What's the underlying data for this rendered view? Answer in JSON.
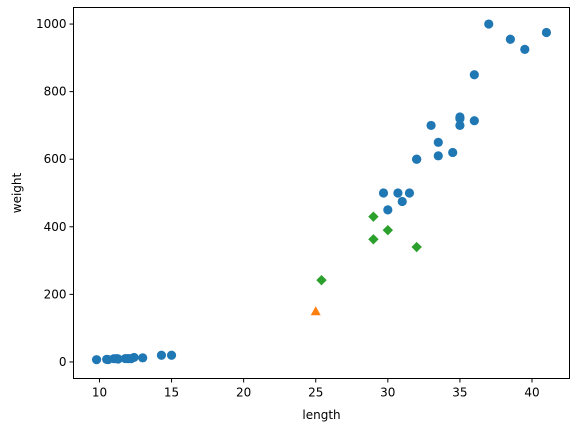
{
  "chart_data": {
    "type": "scatter",
    "title": "",
    "xlabel": "length",
    "ylabel": "weight",
    "xlim": [
      8.2,
      42.6
    ],
    "ylim": [
      -49,
      1049
    ],
    "xticks": [
      10,
      15,
      20,
      25,
      30,
      35,
      40
    ],
    "yticks": [
      0,
      200,
      400,
      600,
      800,
      1000
    ],
    "xtick_labels": [
      "10",
      "15",
      "20",
      "25",
      "30",
      "35",
      "40"
    ],
    "ytick_labels": [
      "0",
      "200",
      "400",
      "600",
      "800",
      "1000"
    ],
    "grid": false,
    "legend": "none",
    "series": [
      {
        "marker": "circle",
        "color": "#1f77b4",
        "x": [
          9.8,
          10.5,
          10.6,
          11.0,
          11.2,
          11.3,
          11.8,
          12.0,
          12.2,
          12.4,
          13.0,
          14.3,
          15.0,
          29.7,
          30.0,
          30.7,
          31.0,
          31.5,
          32.0,
          32.0,
          33.0,
          33.5,
          33.5,
          34.5,
          35.0,
          35.0,
          35.0,
          36.0,
          36.0,
          37.0,
          38.5,
          39.5,
          41.0
        ],
        "y": [
          6.7,
          7.5,
          7.0,
          9.7,
          9.8,
          8.7,
          10.0,
          9.9,
          9.8,
          13.4,
          12.2,
          19.7,
          19.9,
          500,
          450,
          500,
          475,
          500,
          600,
          600,
          700,
          610,
          650,
          620,
          700,
          725,
          720,
          714,
          850,
          1000,
          955,
          925,
          975
        ]
      },
      {
        "marker": "diamond",
        "color": "#2ca02c",
        "x": [
          25.4,
          29.0,
          29.0,
          30.0,
          32.0
        ],
        "y": [
          242,
          430,
          363,
          390,
          340
        ]
      },
      {
        "marker": "triangle",
        "color": "#ff7f0e",
        "x": [
          25.0
        ],
        "y": [
          150
        ]
      }
    ]
  }
}
